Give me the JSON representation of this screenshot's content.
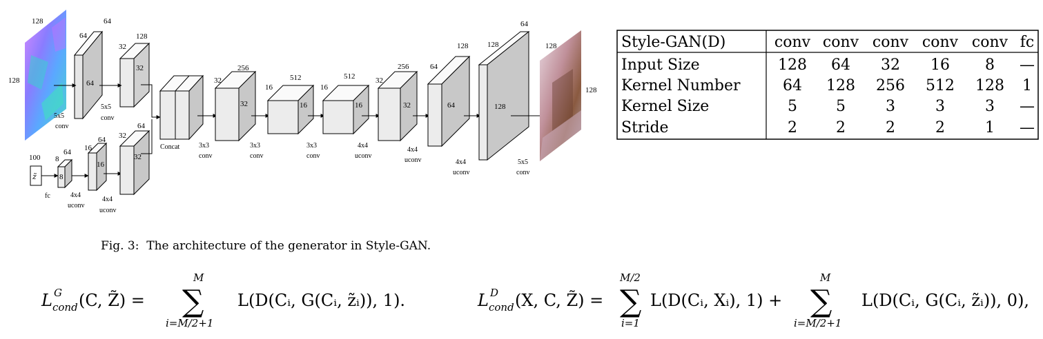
{
  "figure": {
    "caption": "Fig. 3:  The architecture of the generator in Style-GAN.",
    "network": {
      "normal_map": {
        "height_label": "128",
        "width_label": "128"
      },
      "z_input": {
        "symbol": "z̃",
        "size_label": "100",
        "op": "fc"
      },
      "blocks": {
        "b1": {
          "depth": "64",
          "size": "64",
          "side": "64"
        },
        "b2": {
          "depth": "128",
          "size": "32",
          "side": "32"
        },
        "z8": {
          "depth": "64",
          "size": "8",
          "side": "8"
        },
        "z16": {
          "depth": "64",
          "size": "16",
          "side": "16"
        },
        "z32": {
          "depth": "64",
          "size": "32",
          "side": "32"
        },
        "c1": {
          "depth": "256",
          "size": "32",
          "side": "32"
        },
        "c2": {
          "depth": "512",
          "size": "16",
          "side": "16"
        },
        "c3": {
          "depth": "512",
          "size": "16",
          "side": "16"
        },
        "u1": {
          "depth": "256",
          "size": "32",
          "side": "32"
        },
        "u2": {
          "depth": "128",
          "size": "64",
          "side": "64"
        },
        "u3": {
          "depth": "64",
          "size": "128",
          "side": "128"
        }
      },
      "ops": {
        "o1": {
          "k": "5x5",
          "t": "conv"
        },
        "o2": {
          "k": "5x5",
          "t": "conv"
        },
        "oz1": {
          "k": "4x4",
          "t": "uconv"
        },
        "oz2": {
          "k": "4x4",
          "t": "uconv"
        },
        "concat": "Concat",
        "o3": {
          "k": "3x3",
          "t": "conv"
        },
        "o4": {
          "k": "3x3",
          "t": "conv"
        },
        "o5": {
          "k": "3x3",
          "t": "conv"
        },
        "o6": {
          "k": "4x4",
          "t": "uconv"
        },
        "o7": {
          "k": "4x4",
          "t": "uconv"
        },
        "o8": {
          "k": "4x4",
          "t": "uconv"
        },
        "o9": {
          "k": "5x5",
          "t": "conv"
        }
      },
      "output_image": {
        "height_label": "128",
        "width_label": "128"
      }
    }
  },
  "table": {
    "header": [
      "Style-GAN(D)",
      "conv",
      "conv",
      "conv",
      "conv",
      "conv",
      "fc"
    ],
    "rows": [
      [
        "Input Size",
        "128",
        "64",
        "32",
        "16",
        "8",
        "—"
      ],
      [
        "Kernel Number",
        "64",
        "128",
        "256",
        "512",
        "128",
        "1"
      ],
      [
        "Kernel Size",
        "5",
        "5",
        "3",
        "3",
        "3",
        "—"
      ],
      [
        "Stride",
        "2",
        "2",
        "2",
        "2",
        "1",
        "—"
      ]
    ]
  },
  "equations": {
    "eq1": {
      "lhs": "L",
      "lhs_sup": "G",
      "lhs_sub": "cond",
      "lhs_args": "(C, Z̃) =",
      "sum_top": "M",
      "sum_bottom": "i=M/2+1",
      "body": "L(D(Cᵢ, G(Cᵢ, z̃ᵢ)), 1)."
    },
    "eq2": {
      "lhs": "L",
      "lhs_sup": "D",
      "lhs_sub": "cond",
      "lhs_args": "(X, C, Z̃) =",
      "sum1_top": "M/2",
      "sum1_bottom": "i=1",
      "body1": "L(D(Cᵢ, Xᵢ), 1) +",
      "sum2_top": "M",
      "sum2_bottom": "i=M/2+1",
      "body2": "L(D(Cᵢ, G(Cᵢ, z̃ᵢ)), 0),"
    }
  }
}
